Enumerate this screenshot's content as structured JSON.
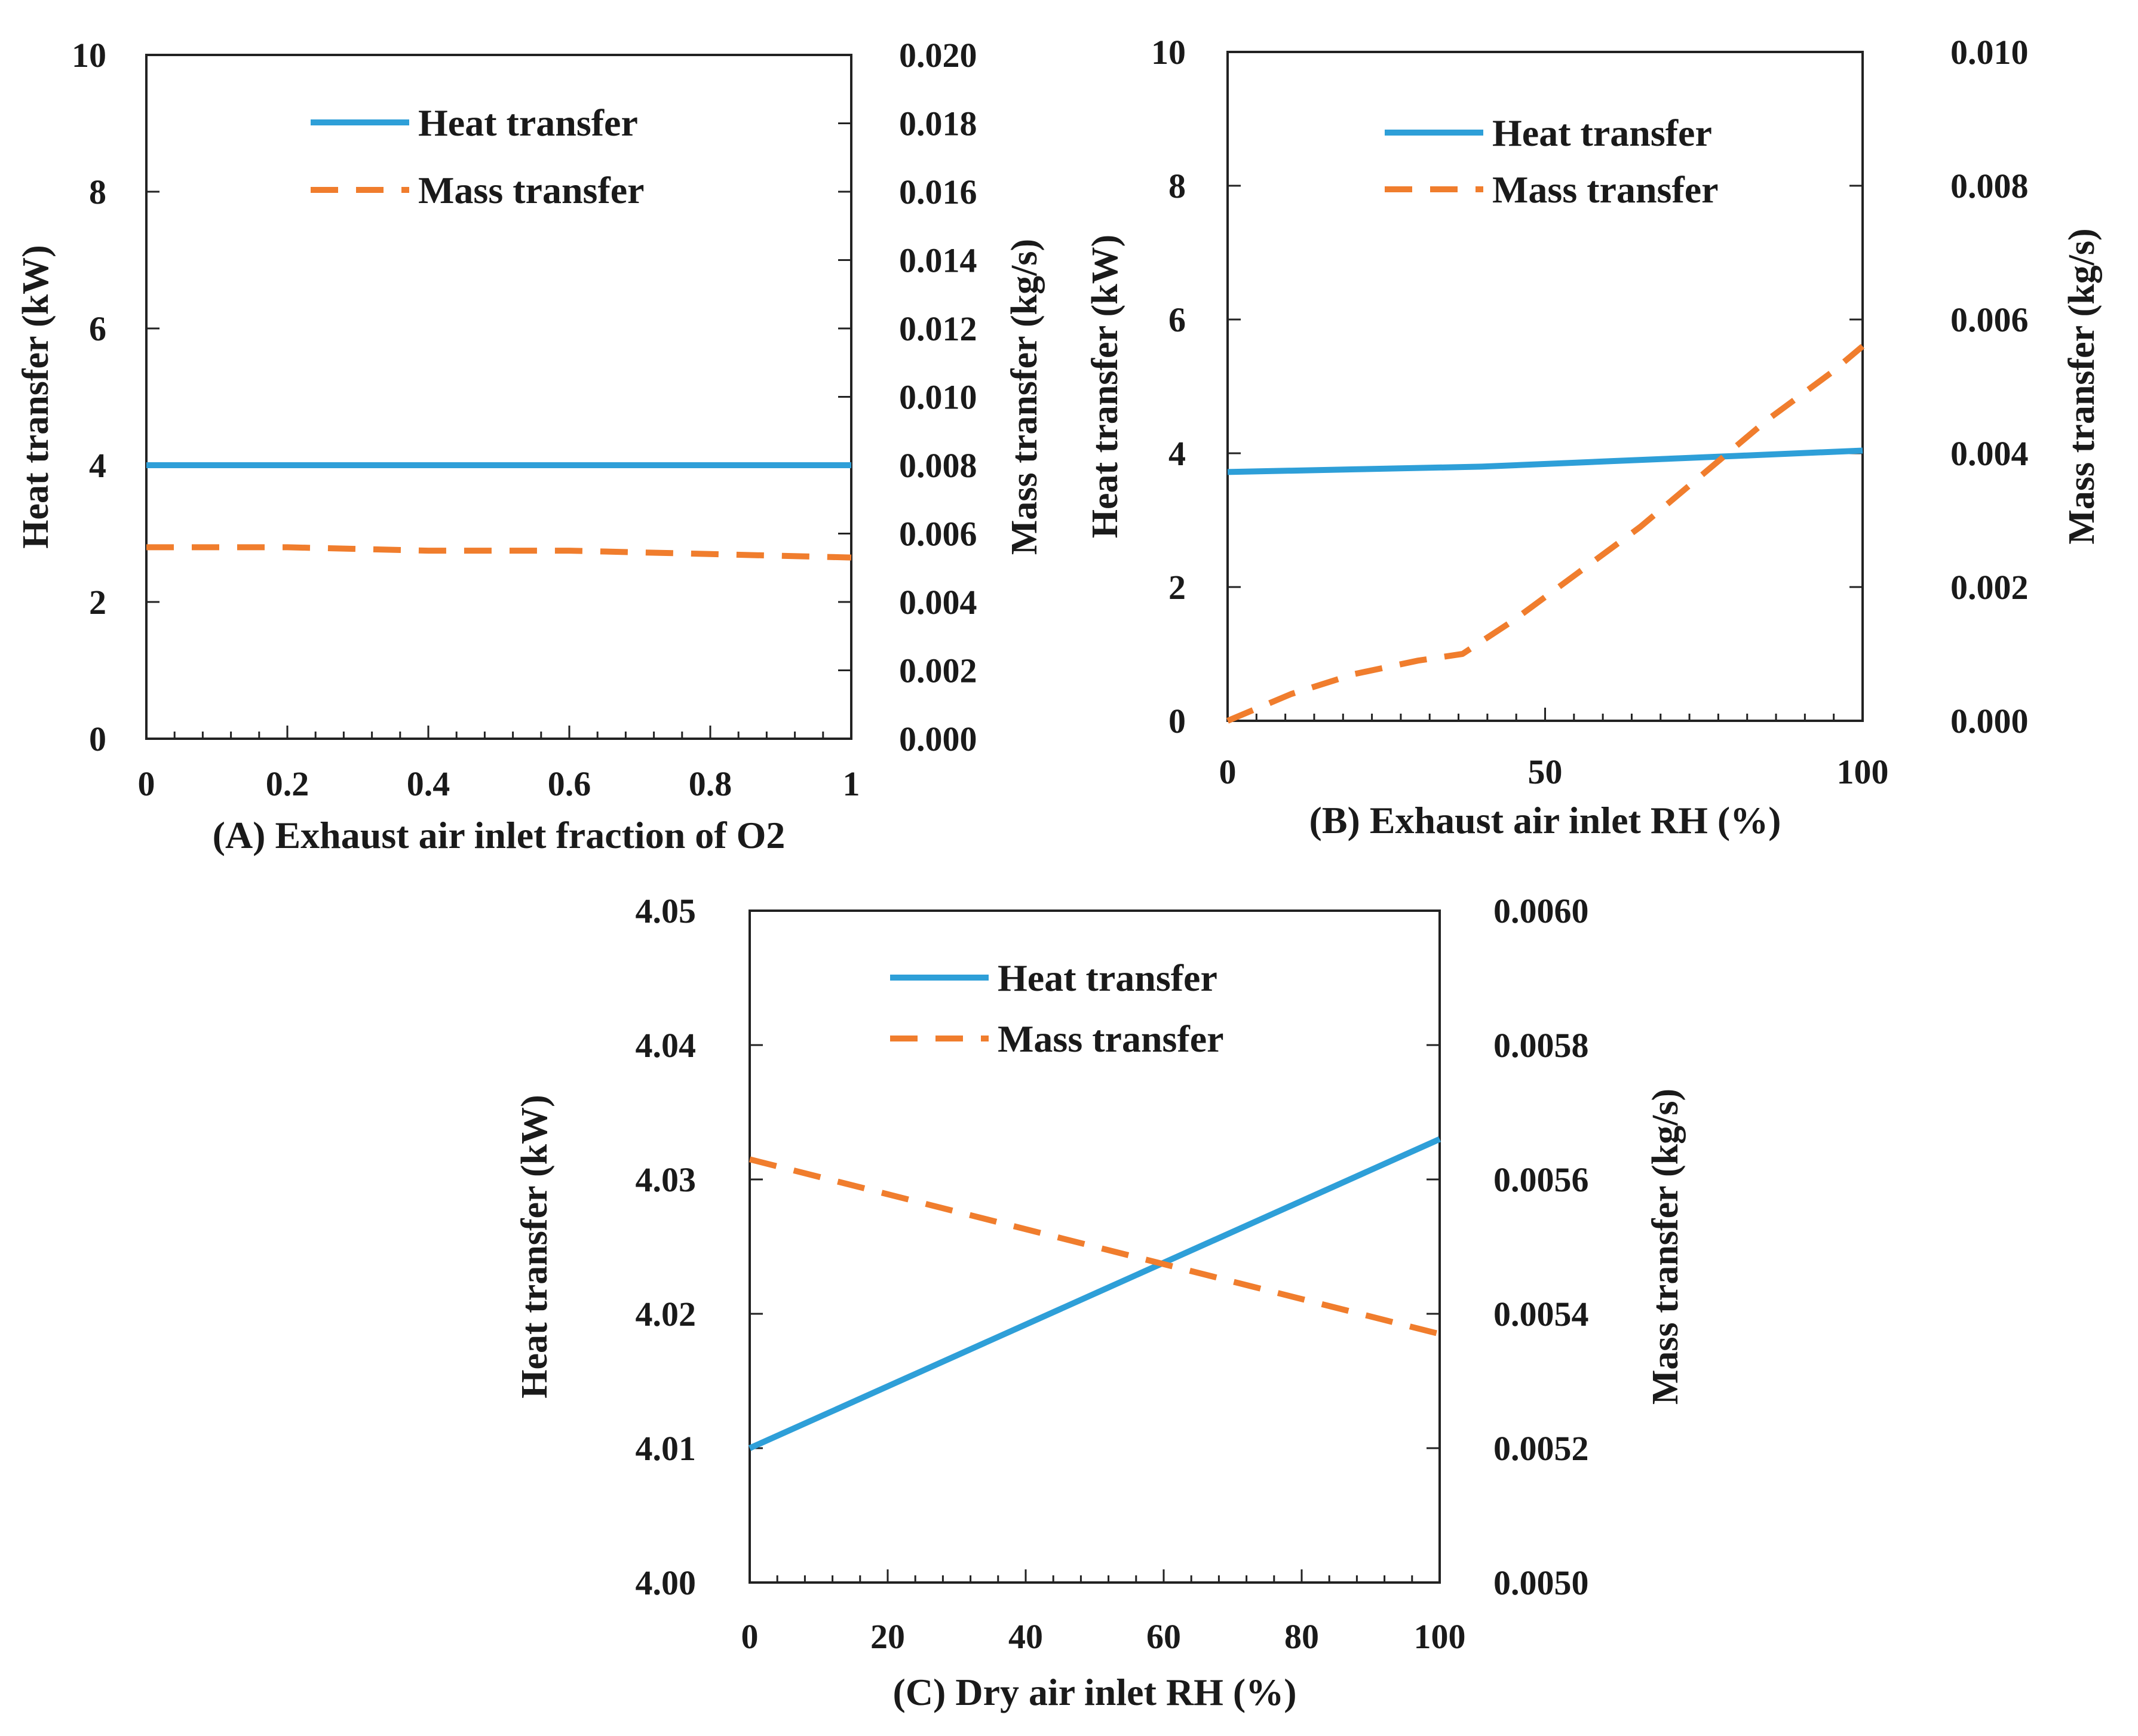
{
  "colors": {
    "heat": "#2e9fd8",
    "mass": "#f07d2d",
    "ink": "#1a1a1a"
  },
  "chart_data": [
    {
      "id": "A",
      "type": "line",
      "caption_letter": "A",
      "caption_text": "Exhaust air inlet  fraction of O2",
      "ylabel_left": "Heat transfer (kW)",
      "ylabel_right": "Mass transfer (kg/s)",
      "xlim": [
        0,
        1
      ],
      "ylim_left": [
        0,
        10
      ],
      "ylim_right": [
        0,
        0.02
      ],
      "x_ticks": [
        "0",
        "0.2",
        "0.4",
        "0.6",
        "0.8",
        "1"
      ],
      "y_left_ticks": [
        "0",
        "2",
        "4",
        "6",
        "8",
        "10"
      ],
      "y_right_ticks": [
        "0.000",
        "0.002",
        "0.004",
        "0.006",
        "0.008",
        "0.010",
        "0.012",
        "0.014",
        "0.016",
        "0.018",
        "0.020"
      ],
      "legend": [
        "Heat transfer",
        "Mass transfer"
      ],
      "legend_position": "top-center",
      "series": [
        {
          "name": "Heat transfer",
          "axis": "left",
          "style": "solid",
          "x": [
            0,
            0.2,
            0.4,
            0.6,
            0.8,
            1
          ],
          "y": [
            4.0,
            4.0,
            4.0,
            4.0,
            4.0,
            4.0
          ]
        },
        {
          "name": "Mass transfer",
          "axis": "right",
          "style": "dashed",
          "x": [
            0,
            0.2,
            0.4,
            0.6,
            0.8,
            1
          ],
          "y": [
            0.0056,
            0.0056,
            0.0055,
            0.0055,
            0.0054,
            0.0053
          ]
        }
      ]
    },
    {
      "id": "B",
      "type": "line",
      "caption_letter": "B",
      "caption_text": "Exhaust air inlet  RH (%)",
      "ylabel_left": "Heat transfer (kW)",
      "ylabel_right": "Mass transfer (kg/s)",
      "xlim": [
        0,
        100
      ],
      "ylim_left": [
        0,
        10
      ],
      "ylim_right": [
        0,
        0.01
      ],
      "x_ticks": [
        "0",
        "50",
        "100"
      ],
      "y_left_ticks": [
        "0",
        "2",
        "4",
        "6",
        "8",
        "10"
      ],
      "y_right_ticks": [
        "0.000",
        "0.002",
        "0.004",
        "0.006",
        "0.008",
        "0.010"
      ],
      "legend": [
        "Heat transfer",
        "Mass transfer"
      ],
      "legend_position": "top-center",
      "series": [
        {
          "name": "Heat transfer",
          "axis": "left",
          "style": "solid",
          "x": [
            0,
            20,
            40,
            60,
            80,
            100
          ],
          "y": [
            3.72,
            3.76,
            3.8,
            3.88,
            3.96,
            4.04
          ]
        },
        {
          "name": "Mass transfer",
          "axis": "right",
          "style": "dashed",
          "x": [
            0,
            10,
            20,
            30,
            37,
            45,
            55,
            65,
            75,
            85,
            95,
            100
          ],
          "y": [
            0.0,
            0.0004,
            0.0007,
            0.0009,
            0.001,
            0.0015,
            0.0022,
            0.0029,
            0.0037,
            0.0045,
            0.0052,
            0.0056
          ]
        }
      ]
    },
    {
      "id": "C",
      "type": "line",
      "caption_letter": "C",
      "caption_text": "Dry air inlet  RH (%)",
      "ylabel_left": "Heat transfer (kW)",
      "ylabel_right": "Mass transfer (kg/s)",
      "xlim": [
        0,
        100
      ],
      "ylim_left": [
        4.0,
        4.05
      ],
      "ylim_right": [
        0.005,
        0.006
      ],
      "x_ticks": [
        "0",
        "20",
        "40",
        "60",
        "80",
        "100"
      ],
      "y_left_ticks": [
        "4.00",
        "4.01",
        "4.02",
        "4.03",
        "4.04",
        "4.05"
      ],
      "y_right_ticks": [
        "0.0050",
        "0.0052",
        "0.0054",
        "0.0056",
        "0.0058",
        "0.0060"
      ],
      "legend": [
        "Heat transfer",
        "Mass transfer"
      ],
      "legend_position": "top-center",
      "series": [
        {
          "name": "Heat transfer",
          "axis": "left",
          "style": "solid",
          "x": [
            0,
            100
          ],
          "y": [
            4.01,
            4.033
          ]
        },
        {
          "name": "Mass transfer",
          "axis": "right",
          "style": "dashed",
          "x": [
            0,
            100
          ],
          "y": [
            0.00563,
            0.00537
          ]
        }
      ]
    }
  ]
}
